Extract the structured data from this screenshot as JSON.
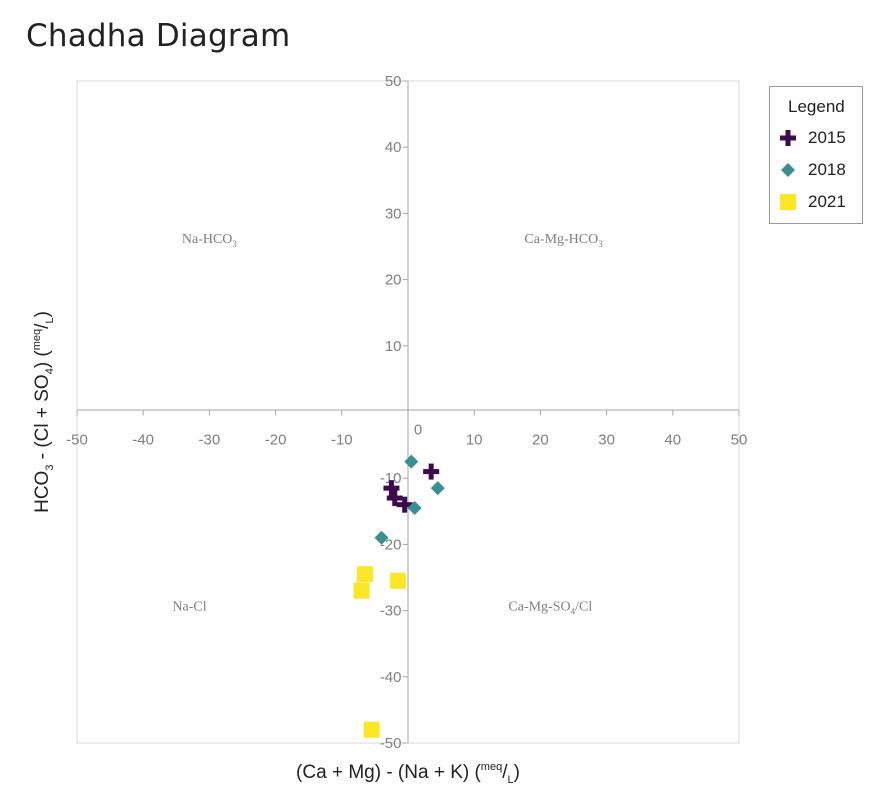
{
  "chart_data": {
    "type": "scatter",
    "title": "Chadha Diagram",
    "xlabel": {
      "main": "(Ca + Mg) - (Na + K) (",
      "unit_num": "meq",
      "unit_sep": "/",
      "unit_den": "L",
      "close": ")"
    },
    "ylabel": {
      "main_a": "HCO",
      "sub_a": "3",
      "main_b": " - (Cl + SO",
      "sub_b": "4",
      "main_c": ") (",
      "unit_num": "meq",
      "unit_sep": "/",
      "unit_den": "L",
      "close": ")"
    },
    "xlim": [
      -50,
      50
    ],
    "ylim": [
      -50,
      50
    ],
    "x_ticks": [
      "-50",
      "-40",
      "-30",
      "-20",
      "-10",
      "0",
      "10",
      "20",
      "30",
      "40",
      "50"
    ],
    "y_ticks": [
      "50",
      "40",
      "30",
      "20",
      "10",
      "-10",
      "-20",
      "-30",
      "-40",
      "-50"
    ],
    "grid": false,
    "regions": [
      {
        "text": "Na-HCO",
        "sub": "3",
        "tail": "",
        "quadrant": "top-left"
      },
      {
        "text": "Ca-Mg-HCO",
        "sub": "3",
        "tail": "",
        "quadrant": "top-right"
      },
      {
        "text": "Na-Cl",
        "sub": "",
        "tail": "",
        "quadrant": "bottom-left"
      },
      {
        "text": "Ca-Mg-SO",
        "sub": "4",
        "tail": "/Cl",
        "quadrant": "bottom-right"
      }
    ],
    "legend": {
      "title": "Legend",
      "position": "top-right"
    },
    "series": [
      {
        "name": "2015",
        "marker": "plus",
        "color": "#3d0a4f",
        "points": [
          [
            3.5,
            -9
          ],
          [
            -2.5,
            -11.5
          ],
          [
            -2,
            -13
          ],
          [
            -0.5,
            -14
          ]
        ]
      },
      {
        "name": "2018",
        "marker": "diamond",
        "color": "#3a9090",
        "points": [
          [
            0.5,
            -7.5
          ],
          [
            4.5,
            -11.5
          ],
          [
            1,
            -14.5
          ],
          [
            -4,
            -19
          ]
        ]
      },
      {
        "name": "2021",
        "marker": "square",
        "color": "#fde725",
        "points": [
          [
            -6.5,
            -24.5
          ],
          [
            -1.5,
            -25.5
          ],
          [
            -7,
            -27
          ],
          [
            -5.5,
            -48
          ]
        ]
      }
    ]
  }
}
